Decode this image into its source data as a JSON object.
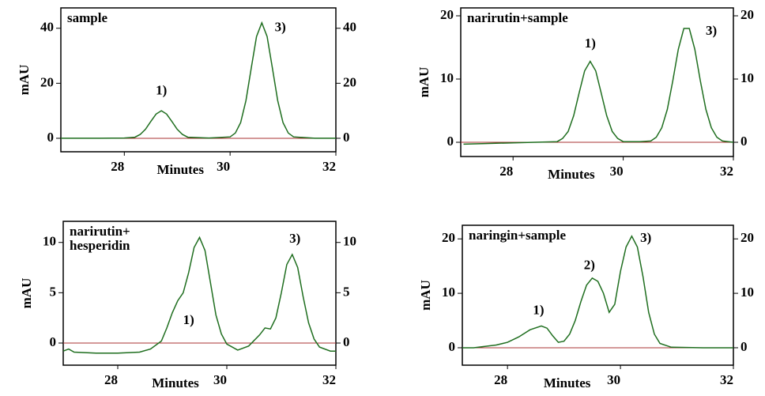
{
  "chart_data": [
    {
      "type": "line",
      "title": "sample",
      "ylabel": "mAU",
      "xlabel": "Minutes",
      "xlim": [
        26.8,
        32
      ],
      "xticks": [
        28,
        30,
        32
      ],
      "ylim": [
        -4.9,
        47.4
      ],
      "yticks": [
        0,
        20,
        40
      ],
      "y2lim": [
        -4.9,
        47.4
      ],
      "y2ticks": [
        0,
        20,
        40
      ],
      "series": [
        {
          "color": "#1f6e1f",
          "x": [
            26.8,
            27.5,
            28.0,
            28.2,
            28.3,
            28.4,
            28.5,
            28.6,
            28.7,
            28.8,
            28.9,
            29.0,
            29.1,
            29.2,
            29.6,
            30.0,
            30.1,
            30.2,
            30.3,
            30.4,
            30.5,
            30.6,
            30.7,
            30.8,
            30.9,
            31.0,
            31.1,
            31.2,
            31.6,
            32.0
          ],
          "values": [
            0,
            0,
            0.1,
            0.4,
            1.4,
            3.3,
            6.1,
            8.8,
            10,
            8.8,
            6.1,
            3.3,
            1.4,
            0.4,
            0.1,
            0.5,
            1.9,
            5.7,
            13.7,
            25.5,
            37,
            42,
            37,
            25.5,
            13.7,
            5.7,
            1.9,
            0.5,
            0,
            0
          ]
        }
      ],
      "annotations": [
        {
          "text": "1)",
          "x": 28.7,
          "y": 17
        },
        {
          "text": "3)",
          "x": 30.95,
          "y": 40
        }
      ]
    },
    {
      "type": "line",
      "title": "narirutin+sample",
      "ylabel": "mAU",
      "xlabel": "Minutes",
      "xlim": [
        27.05,
        32
      ],
      "xticks": [
        28,
        30,
        32
      ],
      "ylim": [
        -2.25,
        21.25
      ],
      "yticks": [
        0,
        10,
        20
      ],
      "y2lim": [
        -2.25,
        21.25
      ],
      "y2ticks": [
        0,
        10,
        20
      ],
      "series": [
        {
          "color": "#1f6e1f",
          "x": [
            27.1,
            27.5,
            28.4,
            28.8,
            28.9,
            29.0,
            29.1,
            29.2,
            29.3,
            29.4,
            29.5,
            29.6,
            29.7,
            29.8,
            29.9,
            30.0,
            30.3,
            30.5,
            30.6,
            30.7,
            30.8,
            30.9,
            31.0,
            31.1,
            31.2,
            31.3,
            31.4,
            31.5,
            31.6,
            31.7,
            31.8,
            32.0
          ],
          "values": [
            -0.3,
            -0.2,
            0,
            0.1,
            0.6,
            1.7,
            4.2,
            7.8,
            11.3,
            12.8,
            11.3,
            7.8,
            4.2,
            1.7,
            0.6,
            0.1,
            0.1,
            0.2,
            0.8,
            2.3,
            5.2,
            9.7,
            14.7,
            18,
            18,
            14.7,
            9.7,
            5.2,
            2.3,
            0.8,
            0.2,
            0
          ]
        }
      ],
      "annotations": [
        {
          "text": "1)",
          "x": 29.4,
          "y": 15.5
        },
        {
          "text": "3)",
          "x": 31.6,
          "y": 17.5
        }
      ]
    },
    {
      "type": "line",
      "title": "narirutin+\nhesperidin",
      "ylabel": "mAU",
      "xlabel": "Minutes",
      "xlim": [
        27.0,
        32
      ],
      "xticks": [
        28,
        30,
        32
      ],
      "ylim": [
        -2.2,
        12.1
      ],
      "yticks": [
        0,
        5,
        10
      ],
      "y2lim": [
        -2.2,
        12.1
      ],
      "y2ticks": [
        0,
        5,
        10
      ],
      "series": [
        {
          "color": "#1f6e1f",
          "x": [
            27.0,
            27.1,
            27.2,
            27.6,
            28.0,
            28.4,
            28.6,
            28.8,
            28.9,
            29.0,
            29.1,
            29.2,
            29.3,
            29.4,
            29.5,
            29.6,
            29.7,
            29.8,
            29.9,
            30.0,
            30.2,
            30.4,
            30.6,
            30.7,
            30.8,
            30.9,
            31.0,
            31.1,
            31.2,
            31.3,
            31.4,
            31.5,
            31.6,
            31.7,
            31.9,
            32.0
          ],
          "values": [
            -0.8,
            -0.6,
            -0.9,
            -1.0,
            -1.0,
            -0.9,
            -0.6,
            0.2,
            1.5,
            3.0,
            4.2,
            5.0,
            7.0,
            9.5,
            10.5,
            9.2,
            6.0,
            2.8,
            0.9,
            -0.1,
            -0.7,
            -0.3,
            0.8,
            1.5,
            1.4,
            2.5,
            5.0,
            7.8,
            8.8,
            7.5,
            4.6,
            2.0,
            0.4,
            -0.4,
            -0.8,
            -0.8
          ]
        }
      ],
      "annotations": [
        {
          "text": "1)",
          "x": 29.3,
          "y": 2.2
        },
        {
          "text": "3)",
          "x": 31.25,
          "y": 10.3
        }
      ]
    },
    {
      "type": "line",
      "title": "naringin+sample",
      "ylabel": "mAU",
      "xlabel": "Minutes",
      "xlim": [
        27.2,
        32
      ],
      "xticks": [
        28,
        30,
        32
      ],
      "ylim": [
        -3.2,
        22.5
      ],
      "yticks": [
        0,
        10,
        20
      ],
      "y2lim": [
        -3.2,
        22.5
      ],
      "y2ticks": [
        0,
        10,
        20
      ],
      "series": [
        {
          "color": "#1f6e1f",
          "x": [
            27.2,
            27.4,
            27.8,
            28.0,
            28.2,
            28.4,
            28.6,
            28.7,
            28.8,
            28.9,
            29.0,
            29.1,
            29.2,
            29.3,
            29.4,
            29.5,
            29.6,
            29.7,
            29.8,
            29.9,
            30.0,
            30.1,
            30.2,
            30.3,
            30.4,
            30.5,
            30.6,
            30.7,
            30.9,
            31.5,
            32.0
          ],
          "values": [
            0,
            0,
            0.5,
            1.0,
            2.0,
            3.3,
            4.0,
            3.6,
            2.2,
            1.0,
            1.2,
            2.5,
            5.0,
            8.5,
            11.5,
            12.8,
            12.2,
            10.0,
            6.5,
            8.0,
            14.0,
            18.5,
            20.5,
            18.5,
            13.0,
            6.5,
            2.5,
            0.8,
            0.1,
            0,
            0
          ]
        }
      ],
      "annotations": [
        {
          "text": "1)",
          "x": 28.55,
          "y": 6.7
        },
        {
          "text": "2)",
          "x": 29.45,
          "y": 15
        },
        {
          "text": "3)",
          "x": 30.45,
          "y": 20
        }
      ]
    }
  ]
}
